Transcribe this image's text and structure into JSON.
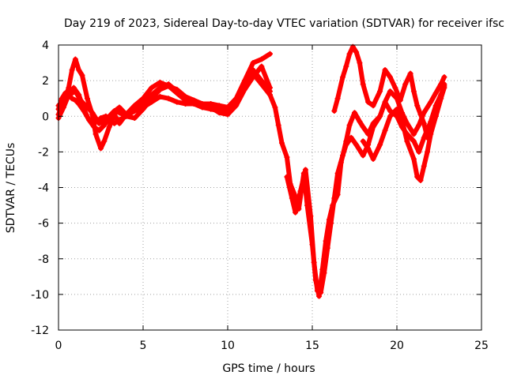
{
  "chart_data": {
    "type": "scatter",
    "title": "Day 219 of 2023, Sidereal Day-to-day VTEC variation (SDTVAR) for receiver ifsc",
    "xlabel": "GPS time / hours",
    "ylabel": "SDTVAR / TECUs",
    "xlim": [
      0,
      25
    ],
    "ylim": [
      -12,
      4
    ],
    "x_ticks": [
      0,
      5,
      10,
      15,
      20,
      25
    ],
    "y_ticks": [
      -12,
      -10,
      -8,
      -6,
      -4,
      -2,
      0,
      2,
      4
    ],
    "x_tick_labels": [
      "0",
      "5",
      "10",
      "15",
      "20",
      "25"
    ],
    "y_tick_labels": [
      "-12",
      "-10",
      "-8",
      "-6",
      "-4",
      "-2",
      "0",
      "2",
      "4"
    ],
    "grid": true,
    "marker": "+",
    "legend": "none",
    "color": "#ff0000",
    "series": [
      {
        "x": [
          0.0,
          0.2,
          0.4,
          0.6,
          0.8,
          1.0,
          1.2,
          1.5,
          1.8,
          2.0,
          2.3,
          2.5,
          2.8,
          3.0,
          3.3,
          3.6,
          4.0,
          4.5,
          5.0,
          5.5,
          6.0,
          6.5,
          7.0,
          7.5,
          8.0,
          8.5,
          9.0,
          9.5,
          10.0,
          10.5,
          11.0,
          11.5,
          12.0,
          12.5
        ],
        "y": [
          0.4,
          1.0,
          1.3,
          1.2,
          1.0,
          0.9,
          0.7,
          0.3,
          -0.2,
          -0.4,
          -0.3,
          -0.1,
          0.0,
          -0.2,
          -0.4,
          -0.2,
          0.0,
          0.3,
          0.5,
          0.8,
          1.1,
          1.0,
          0.8,
          0.7,
          0.7,
          0.5,
          0.4,
          0.3,
          0.3,
          0.9,
          1.8,
          2.6,
          2.0,
          1.4
        ]
      },
      {
        "x": [
          0.0,
          0.2,
          0.4,
          0.6,
          0.8,
          1.0,
          1.2,
          1.4,
          1.7,
          2.0,
          2.2,
          2.5,
          2.7,
          3.0,
          3.3,
          3.6,
          4.0,
          4.5,
          5.0,
          5.5,
          6.0,
          6.5,
          7.0,
          7.5,
          8.0,
          8.5,
          9.0,
          9.5,
          10.0,
          10.5,
          11.0,
          11.5,
          12.0,
          12.5
        ],
        "y": [
          0.1,
          0.6,
          1.0,
          1.6,
          2.6,
          3.2,
          2.6,
          2.3,
          1.0,
          0.1,
          -1.0,
          -1.8,
          -1.4,
          -0.6,
          0.1,
          -0.4,
          0.1,
          0.6,
          1.0,
          1.6,
          1.9,
          1.7,
          1.5,
          1.1,
          0.9,
          0.7,
          0.7,
          0.6,
          0.5,
          1.0,
          2.0,
          3.0,
          3.2,
          3.5
        ]
      },
      {
        "x": [
          0.0,
          0.3,
          0.6,
          0.9,
          1.2,
          1.5,
          1.8,
          2.1,
          2.4,
          2.7,
          3.0,
          3.3,
          3.6,
          4.0,
          4.5,
          5.0,
          5.5,
          6.0,
          6.5,
          7.0,
          7.5,
          8.0,
          8.5,
          9.0,
          9.5,
          10.0,
          10.5,
          11.0,
          11.5,
          12.0,
          12.5
        ],
        "y": [
          -0.1,
          0.5,
          1.2,
          1.6,
          1.2,
          0.4,
          -0.2,
          -0.6,
          -0.8,
          -0.5,
          -0.1,
          0.3,
          0.2,
          0.0,
          -0.1,
          0.4,
          1.0,
          1.5,
          1.7,
          1.3,
          0.9,
          0.8,
          0.6,
          0.5,
          0.2,
          0.1,
          0.6,
          1.5,
          2.2,
          2.8,
          1.6
        ]
      },
      {
        "x": [
          0.0,
          0.3,
          0.6,
          1.0,
          1.3,
          1.7,
          2.0,
          2.4,
          2.8,
          3.2,
          3.6,
          4.0,
          4.5,
          5.0,
          5.5,
          6.0,
          6.5,
          7.0,
          7.5,
          8.0,
          8.5,
          9.0,
          9.5,
          10.0,
          10.5,
          11.0,
          11.5,
          12.0,
          12.5
        ],
        "y": [
          0.6,
          0.9,
          1.2,
          1.4,
          0.9,
          0.5,
          0.2,
          -0.4,
          -0.2,
          0.2,
          0.5,
          0.1,
          0.3,
          0.7,
          1.2,
          1.6,
          1.8,
          1.4,
          1.0,
          0.8,
          0.6,
          0.5,
          0.4,
          0.2,
          0.8,
          1.6,
          2.4,
          1.8,
          1.2
        ]
      },
      {
        "x": [
          12.5,
          12.8,
          13.0,
          13.2,
          13.5,
          13.7,
          14.0,
          14.2,
          14.5,
          14.7,
          15.0,
          15.2,
          15.4,
          15.6,
          15.8,
          16.0,
          16.2,
          16.5,
          16.7,
          17.0,
          17.2,
          17.5,
          17.8,
          18.0,
          18.3,
          18.6,
          19.0,
          19.3,
          19.6,
          20.0,
          20.3,
          20.6,
          21.0,
          21.3,
          21.6,
          22.0,
          22.3,
          22.6,
          22.8
        ],
        "y": [
          1.2,
          0.5,
          -0.5,
          -1.5,
          -2.3,
          -3.8,
          -4.5,
          -5.2,
          -3.2,
          -5.0,
          -7.2,
          -9.2,
          -10.1,
          -8.6,
          -7.0,
          -5.8,
          -5.0,
          -4.4,
          -2.6,
          -1.4,
          -0.5,
          0.2,
          -0.3,
          -0.6,
          -1.0,
          -0.4,
          0.0,
          0.8,
          0.3,
          0.0,
          -0.6,
          -1.0,
          -1.4,
          -2.0,
          -1.2,
          -0.3,
          0.6,
          1.2,
          1.7
        ]
      },
      {
        "x": [
          13.5,
          13.8,
          14.0,
          14.3,
          14.6,
          14.9,
          15.1,
          15.3,
          15.5,
          15.7,
          15.9,
          16.1,
          16.3,
          16.5,
          16.8,
          17.0,
          17.3,
          17.6,
          18.0,
          18.3,
          18.6,
          19.0,
          19.3,
          19.6,
          20.0,
          20.3,
          20.6,
          21.0,
          21.3,
          21.6,
          22.0,
          22.3,
          22.6,
          22.8
        ],
        "y": [
          -3.4,
          -4.6,
          -5.4,
          -4.2,
          -3.0,
          -5.6,
          -8.2,
          -9.8,
          -9.9,
          -8.8,
          -7.4,
          -6.0,
          -4.6,
          -3.2,
          -2.2,
          -1.6,
          -1.2,
          -1.6,
          -2.2,
          -1.6,
          -0.6,
          0.0,
          0.8,
          1.4,
          1.0,
          0.2,
          -0.4,
          -1.0,
          -0.5,
          0.2,
          0.8,
          1.3,
          1.8,
          2.2
        ]
      },
      {
        "x": [
          16.3,
          16.5,
          16.8,
          17.0,
          17.2,
          17.4,
          17.6,
          17.8,
          18.0,
          18.3,
          18.6,
          19.0,
          19.3,
          19.6,
          19.9,
          20.2,
          20.5,
          20.8,
          21.0,
          21.2,
          21.4,
          21.6,
          21.8,
          22.0,
          22.3,
          22.6,
          22.8
        ],
        "y": [
          0.3,
          1.0,
          2.2,
          2.8,
          3.5,
          3.9,
          3.6,
          3.0,
          1.8,
          0.8,
          0.6,
          1.4,
          2.6,
          2.2,
          1.6,
          0.9,
          1.8,
          2.4,
          1.4,
          0.6,
          0.1,
          -0.4,
          -1.2,
          -0.8,
          0.0,
          1.0,
          1.8
        ]
      },
      {
        "x": [
          18.0,
          18.3,
          18.6,
          19.0,
          19.3,
          19.6,
          20.0,
          20.3,
          20.6,
          21.0,
          21.2,
          21.4,
          21.6,
          21.8,
          22.0,
          22.3,
          22.6,
          22.8
        ],
        "y": [
          -1.4,
          -1.8,
          -2.4,
          -1.6,
          -0.8,
          0.0,
          0.4,
          -0.2,
          -1.4,
          -2.4,
          -3.4,
          -3.6,
          -2.8,
          -2.0,
          -1.0,
          0.0,
          1.0,
          1.6
        ]
      }
    ]
  }
}
